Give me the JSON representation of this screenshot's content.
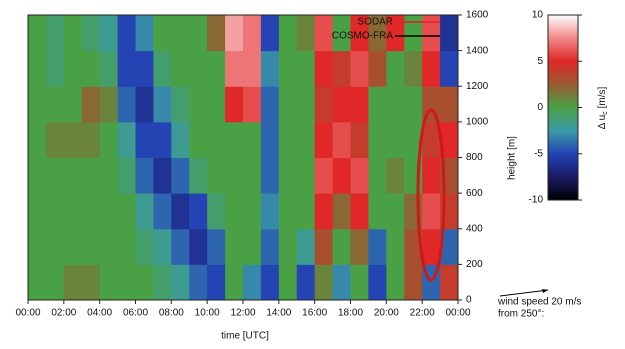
{
  "chart_data": {
    "type": "heatmap",
    "xlabel": "time [UTC]",
    "ylabel": "height [m]",
    "x_edges": [
      0,
      1,
      2,
      3,
      4,
      5,
      6,
      7,
      8,
      9,
      10,
      11,
      12,
      13,
      14,
      15,
      16,
      17,
      18,
      19,
      20,
      21,
      22,
      23,
      24
    ],
    "y_edges": [
      0,
      200,
      400,
      600,
      800,
      1000,
      1200,
      1400,
      1600
    ],
    "z": [
      [
        0,
        0,
        1,
        1,
        0,
        0,
        0,
        -1,
        -2,
        -4,
        -5,
        0,
        -3,
        -5,
        0,
        -5,
        1,
        -3,
        0,
        -5,
        0,
        3,
        -4,
        4
      ],
      [
        0,
        0,
        0,
        0,
        0,
        0,
        -1,
        -2,
        -4,
        -6,
        -4,
        0,
        0,
        -4,
        0,
        -2,
        3,
        0,
        2,
        -4,
        0,
        3,
        5,
        -4
      ],
      [
        0,
        0,
        0,
        0,
        0,
        0,
        -2,
        -4,
        -6,
        -5,
        -1,
        0,
        0,
        -3,
        0,
        0,
        5,
        2,
        5,
        0,
        0,
        2,
        6,
        4
      ],
      [
        0,
        0,
        0,
        0,
        0,
        -1,
        -4,
        -6,
        -4,
        -1,
        0,
        0,
        0,
        -4,
        0,
        0,
        6,
        5,
        6,
        0,
        1,
        0,
        5,
        3
      ],
      [
        0,
        1,
        1,
        1,
        0,
        -2,
        -5,
        -5,
        -2,
        0,
        0,
        0,
        0,
        -4,
        0,
        0,
        5,
        6,
        4,
        0,
        0,
        0,
        4,
        5
      ],
      [
        0,
        0,
        0,
        2,
        1,
        -4,
        -6,
        -3,
        -1,
        0,
        0,
        5,
        6,
        -4,
        0,
        0,
        4,
        5,
        5,
        0,
        0,
        0,
        3,
        3
      ],
      [
        0,
        -1,
        0,
        0,
        -1,
        -5,
        -5,
        -1,
        0,
        0,
        0,
        7,
        7,
        -3,
        0,
        0,
        5,
        4,
        6,
        3,
        0,
        1,
        5,
        -5
      ],
      [
        0,
        -1,
        0,
        -1,
        -2,
        -5,
        -3,
        0,
        0,
        0,
        2,
        8,
        7,
        -5,
        0,
        1,
        6,
        0,
        5,
        2,
        5,
        0,
        6,
        -6
      ]
    ],
    "xlim": [
      0,
      24
    ],
    "xticks": [
      {
        "value": 0,
        "label": "00:00"
      },
      {
        "value": 2,
        "label": "02:00"
      },
      {
        "value": 4,
        "label": "04:00"
      },
      {
        "value": 6,
        "label": "06:00"
      },
      {
        "value": 8,
        "label": "08:00"
      },
      {
        "value": 10,
        "label": "10:00"
      },
      {
        "value": 12,
        "label": "12:00"
      },
      {
        "value": 14,
        "label": "14:00"
      },
      {
        "value": 16,
        "label": "16:00"
      },
      {
        "value": 18,
        "label": "18:00"
      },
      {
        "value": 20,
        "label": "20:00"
      },
      {
        "value": 22,
        "label": "22:00"
      },
      {
        "value": 24,
        "label": "00:00"
      }
    ],
    "ylim": [
      0,
      1600
    ],
    "yticks": [
      0,
      200,
      400,
      600,
      800,
      1000,
      1200,
      1400,
      1600
    ],
    "clim": [
      -10,
      10
    ],
    "cticks": [
      10,
      5,
      0,
      -5,
      -10
    ],
    "colormap": [
      {
        "value": -10,
        "color": "#000000"
      },
      {
        "value": -7.5,
        "color": "#1a1a66"
      },
      {
        "value": -5,
        "color": "#2444b4"
      },
      {
        "value": -2.5,
        "color": "#3a9aa6"
      },
      {
        "value": 0,
        "color": "#4aa044"
      },
      {
        "value": 2.5,
        "color": "#9a5a30"
      },
      {
        "value": 5,
        "color": "#e02828"
      },
      {
        "value": 7.5,
        "color": "#f08888"
      },
      {
        "value": 10,
        "color": "#ffffff"
      }
    ],
    "colorbar_label": {
      "main": "Δ u",
      "sub": "c",
      "unit": "[m/s]"
    },
    "legend": [
      {
        "name": "SODAR",
        "color": "#e02020"
      },
      {
        "name": "COSMO-FRA",
        "color": "#000000"
      }
    ],
    "wind_reference": {
      "speed": "wind speed 20 m/s",
      "direction": "from 250°:"
    }
  }
}
